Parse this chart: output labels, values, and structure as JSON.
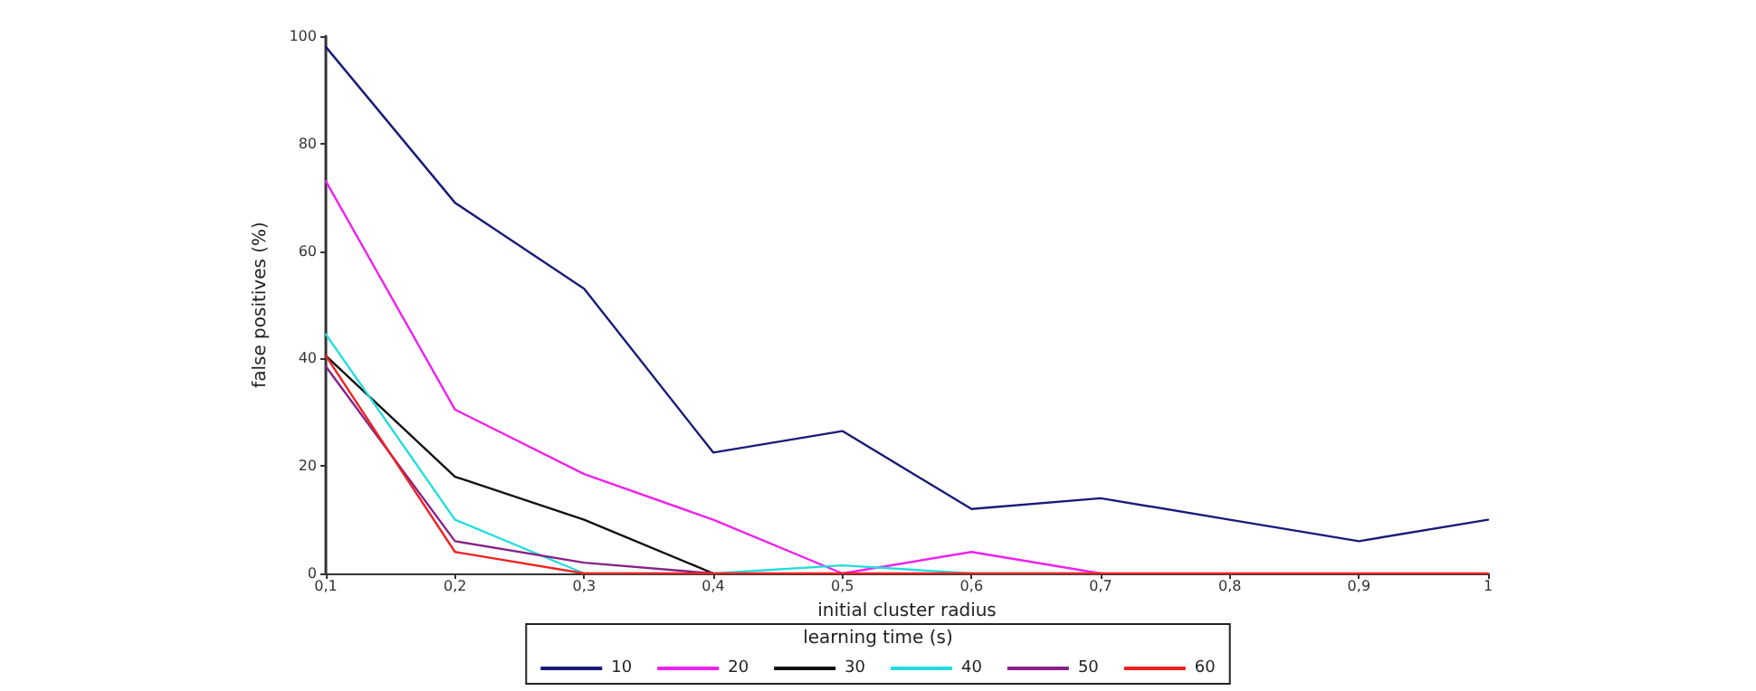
{
  "chart_data": {
    "type": "line",
    "xlabel": "initial cluster radius",
    "ylabel": "false positives (%)",
    "legend_title": "learning time (s)",
    "x": [
      0.1,
      0.2,
      0.3,
      0.4,
      0.5,
      0.6,
      0.7,
      0.8,
      0.9,
      1
    ],
    "series": [
      {
        "name": "10",
        "color": "#1a1a7a",
        "values": [
          98,
          69,
          53,
          22.5,
          26.5,
          12,
          14,
          10,
          6,
          10
        ]
      },
      {
        "name": "20",
        "color": "#ee22ee",
        "values": [
          73,
          30.5,
          18.5,
          10,
          0,
          4,
          0,
          null,
          null,
          null
        ]
      },
      {
        "name": "30",
        "color": "#111111",
        "values": [
          40.5,
          18,
          10,
          0,
          null,
          null,
          null,
          null,
          null,
          null
        ]
      },
      {
        "name": "40",
        "color": "#22dddd",
        "values": [
          44.5,
          10,
          0,
          0,
          1.5,
          0,
          0,
          null,
          null,
          null
        ]
      },
      {
        "name": "50",
        "color": "#882288",
        "values": [
          38.5,
          6,
          2,
          0,
          null,
          null,
          null,
          null,
          null,
          null
        ]
      },
      {
        "name": "60",
        "color": "#ee2222",
        "values": [
          40.5,
          4,
          0,
          0,
          0,
          0,
          0,
          0,
          0,
          0
        ]
      }
    ],
    "xlim": [
      0.1,
      1
    ],
    "xticks": [
      {
        "value": 0.1,
        "label": "0,1"
      },
      {
        "value": 0.2,
        "label": "0,2"
      },
      {
        "value": 0.3,
        "label": "0,3"
      },
      {
        "value": 0.4,
        "label": "0,4"
      },
      {
        "value": 0.5,
        "label": "0,5"
      },
      {
        "value": 0.6,
        "label": "0,6"
      },
      {
        "value": 0.7,
        "label": "0,7"
      },
      {
        "value": 0.8,
        "label": "0,8"
      },
      {
        "value": 0.9,
        "label": "0,9"
      },
      {
        "value": 1,
        "label": "1"
      }
    ],
    "ylim": [
      0,
      100
    ],
    "yticks": [
      0,
      20,
      40,
      60,
      80,
      100
    ],
    "grid": false,
    "legend": "bottom",
    "marker": "none",
    "line_style": "solid"
  }
}
